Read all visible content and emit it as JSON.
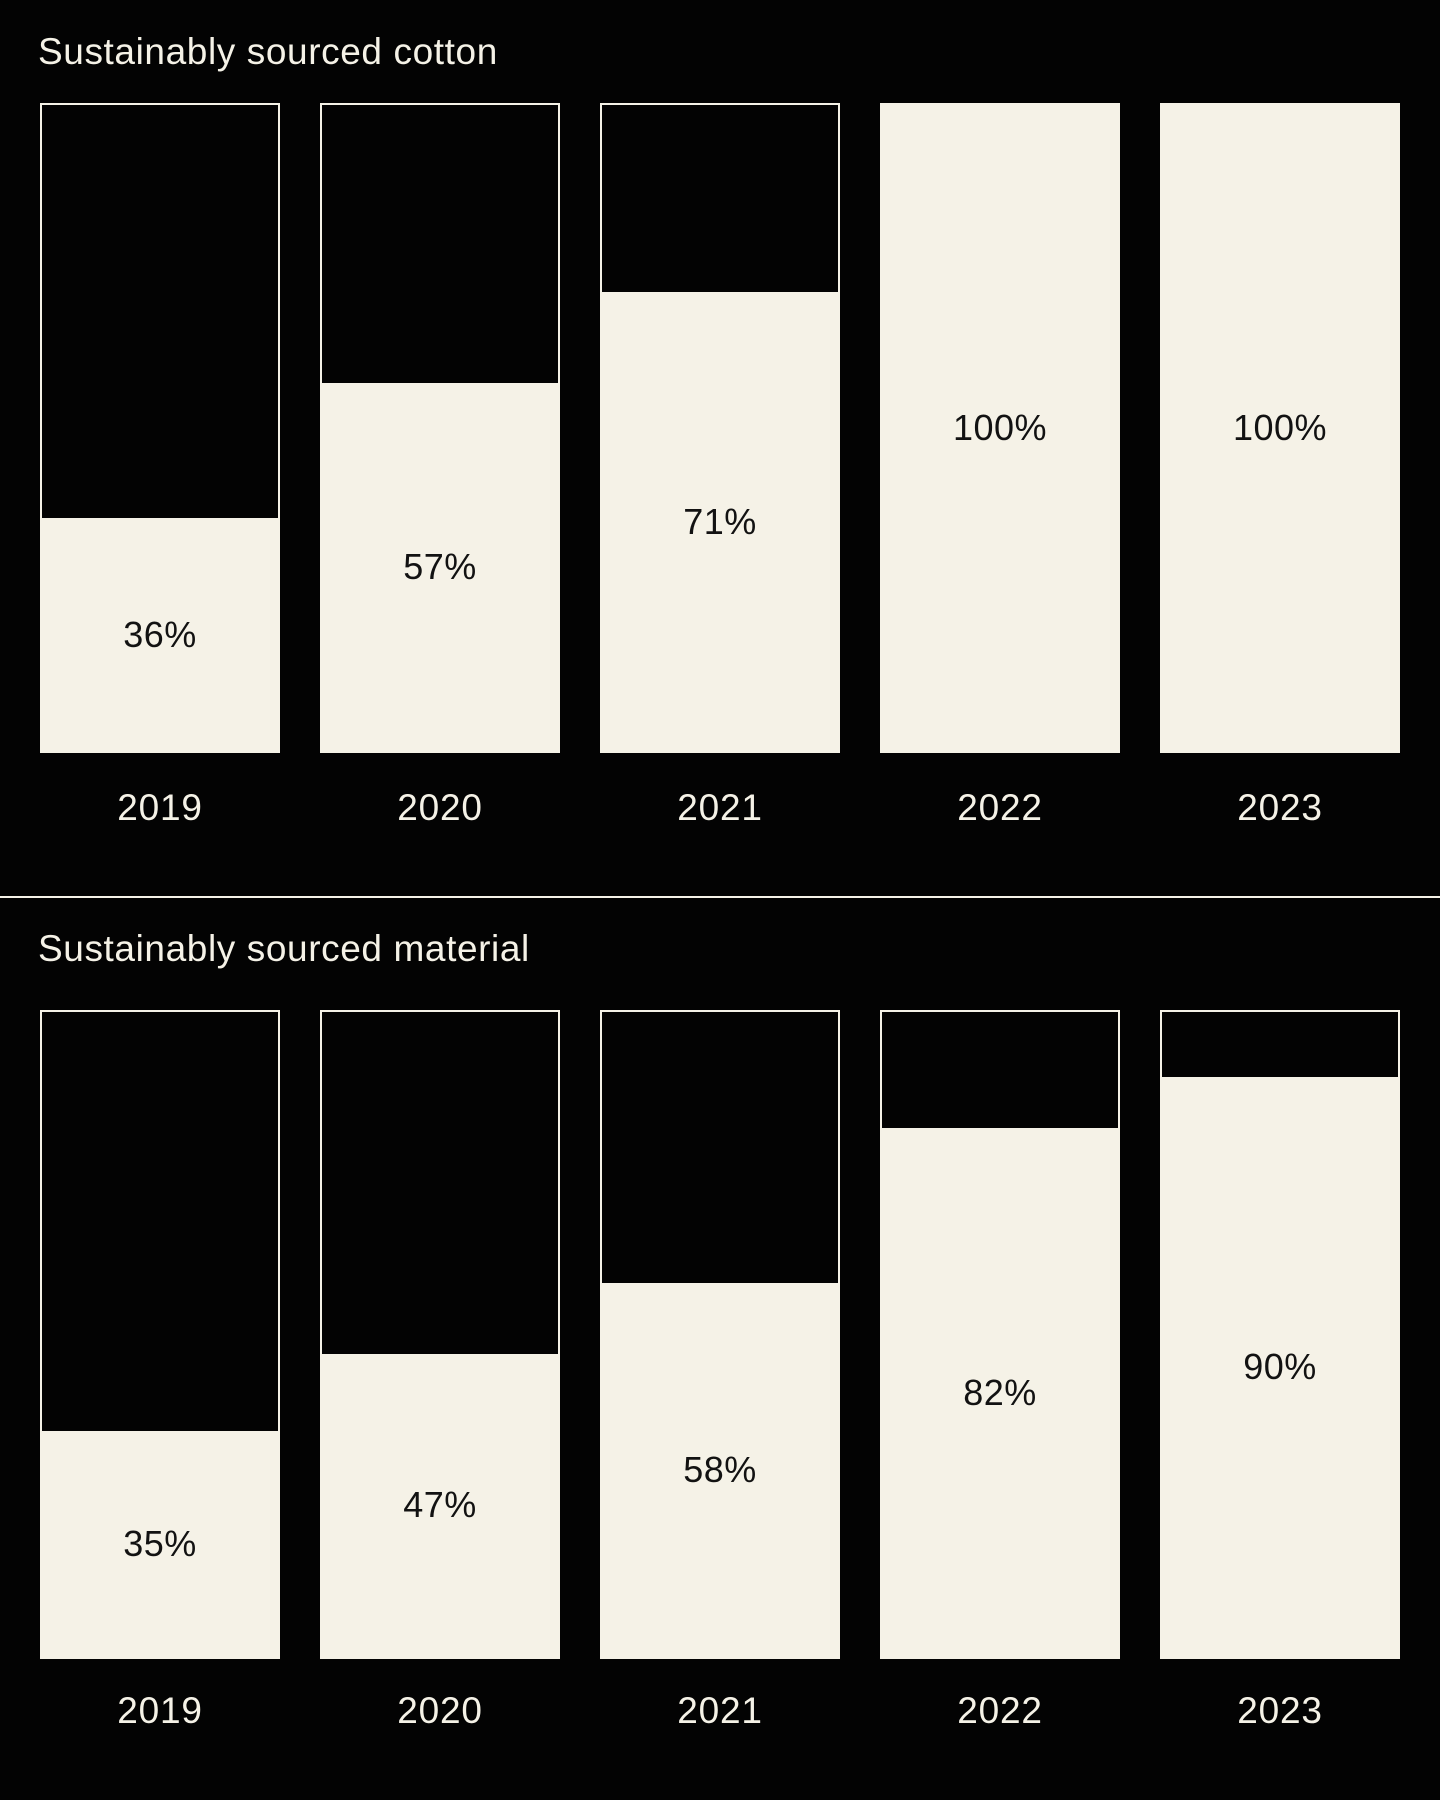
{
  "page": {
    "background": "#030303",
    "divider_color": "#F5F2E7"
  },
  "colors": {
    "cream": "#F5F2E7",
    "value_label_ink": "#121212"
  },
  "chart_data": [
    {
      "type": "bar",
      "title": "Sustainably sourced cotton",
      "categories": [
        "2019",
        "2020",
        "2021",
        "2022",
        "2023"
      ],
      "values": [
        36,
        57,
        71,
        100,
        100
      ],
      "labels": [
        "36%",
        "57%",
        "71%",
        "100%",
        "100%"
      ],
      "unit": "%",
      "ylim": [
        0,
        100
      ],
      "grid": false,
      "legend": "none",
      "orientation": "vertical",
      "bar_outline_color": "#F5F2E7",
      "bar_fill_color": "#F5F2E7",
      "bar_empty_color": "#030303",
      "value_label_color": "#121212",
      "category_label_color": "#F5F2E7"
    },
    {
      "type": "bar",
      "title": "Sustainably sourced material",
      "categories": [
        "2019",
        "2020",
        "2021",
        "2022",
        "2023"
      ],
      "values": [
        35,
        47,
        58,
        82,
        90
      ],
      "labels": [
        "35%",
        "47%",
        "58%",
        "82%",
        "90%"
      ],
      "unit": "%",
      "ylim": [
        0,
        100
      ],
      "grid": false,
      "legend": "none",
      "orientation": "vertical",
      "bar_outline_color": "#F5F2E7",
      "bar_fill_color": "#F5F2E7",
      "bar_empty_color": "#030303",
      "value_label_color": "#121212",
      "category_label_color": "#F5F2E7"
    }
  ]
}
